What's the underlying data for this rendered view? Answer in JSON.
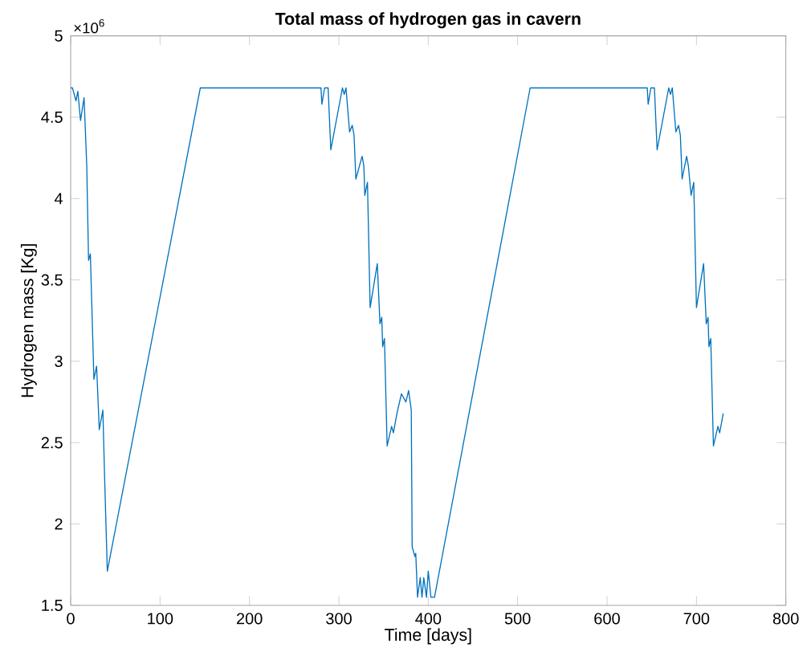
{
  "chart_data": {
    "type": "line",
    "title": "Total mass of hydrogen gas in cavern",
    "xlabel": "Time [days]",
    "ylabel": "Hydrogen mass [Kg]",
    "annotations": [
      "×10$^{6}$"
    ],
    "xlim": [
      0,
      800
    ],
    "xticks": [
      0,
      100,
      200,
      300,
      400,
      500,
      600,
      700,
      800
    ],
    "ylim": [
      1.5,
      5
    ],
    "yticks": [
      1.5,
      2,
      2.5,
      3,
      3.5,
      4,
      4.5,
      5
    ],
    "series": [
      {
        "color": "#0072bd",
        "x": [
          0,
          2,
          6,
          8,
          11,
          15,
          18,
          20,
          22,
          26,
          29,
          32,
          36,
          38,
          41,
          145,
          280,
          281,
          284,
          288,
          291,
          304,
          306,
          308,
          312,
          315,
          317,
          319,
          326,
          328,
          329,
          332,
          335,
          343,
          346,
          348,
          349,
          351,
          354,
          359,
          361,
          365,
          370,
          375,
          378,
          381,
          382,
          385,
          386,
          388,
          391,
          393,
          395,
          398,
          400,
          403,
          407,
          514,
          645,
          646,
          649,
          653,
          656,
          669,
          671,
          673,
          677,
          680,
          682,
          684,
          689,
          691,
          694,
          697,
          700,
          708,
          711,
          713,
          714,
          716,
          719,
          724,
          726,
          730
        ],
        "values": [
          4.68,
          4.68,
          4.6,
          4.66,
          4.48,
          4.62,
          4.2,
          3.62,
          3.66,
          2.89,
          2.97,
          2.58,
          2.7,
          2.28,
          1.71,
          4.68,
          4.68,
          4.58,
          4.68,
          4.68,
          4.3,
          4.68,
          4.64,
          4.68,
          4.41,
          4.45,
          4.39,
          4.12,
          4.26,
          4.2,
          4.02,
          4.1,
          3.33,
          3.6,
          3.23,
          3.27,
          3.09,
          3.14,
          2.48,
          2.6,
          2.56,
          2.68,
          2.8,
          2.75,
          2.82,
          2.7,
          1.86,
          1.8,
          1.82,
          1.55,
          1.67,
          1.55,
          1.67,
          1.55,
          1.71,
          1.55,
          1.55,
          4.68,
          4.68,
          4.58,
          4.68,
          4.68,
          4.3,
          4.68,
          4.64,
          4.68,
          4.41,
          4.45,
          4.39,
          4.12,
          4.26,
          4.2,
          4.02,
          4.1,
          3.33,
          3.6,
          3.23,
          3.27,
          3.09,
          3.14,
          2.48,
          2.6,
          2.56,
          2.68
        ]
      }
    ]
  }
}
